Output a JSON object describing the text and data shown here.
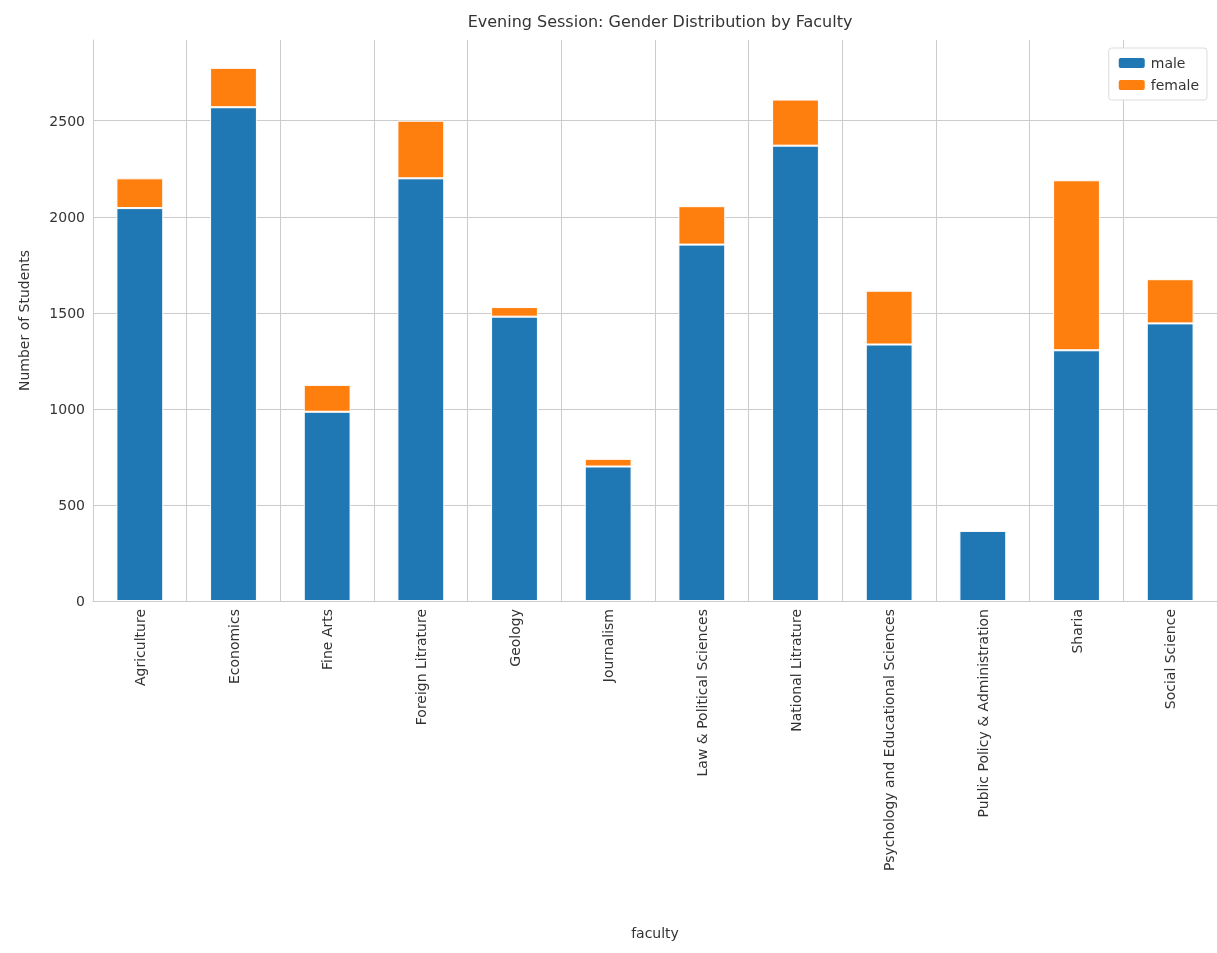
{
  "chart_data": {
    "type": "bar",
    "title": "Evening Session: Gender Distribution by Faculty",
    "xlabel": "faculty",
    "ylabel": "Number of Students",
    "categories": [
      "Agriculture",
      "Economics",
      "Fine Arts",
      "Foreign Litrature",
      "Geology",
      "Journalism",
      "Law & Political Sciences",
      "National Litrature",
      "Psychology and Educational Sciences",
      "Public Policy & Administration",
      "Sharia",
      "Social Science"
    ],
    "series": [
      {
        "name": "male",
        "color": "#1f77b4",
        "values": [
          2045,
          2570,
          985,
          2200,
          1480,
          700,
          1855,
          2370,
          1335,
          365,
          1305,
          1445
        ]
      },
      {
        "name": "female",
        "color": "#ff7f0e",
        "values": [
          155,
          205,
          140,
          300,
          50,
          40,
          200,
          240,
          280,
          null,
          885,
          230
        ]
      }
    ],
    "stacked": true,
    "ylim": [
      0,
      2920
    ],
    "yticks": [
      0,
      500,
      1000,
      1500,
      2000,
      2500
    ],
    "grid": true,
    "legend": "top right"
  }
}
